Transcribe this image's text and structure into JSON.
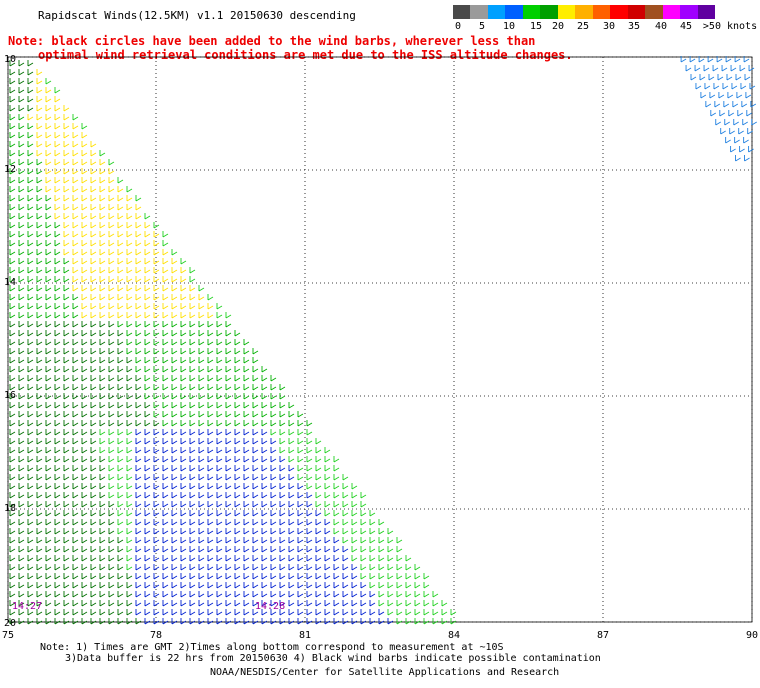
{
  "title": "Rapidscat Winds(12.5KM) v1.1 20150630 descending",
  "note_line1": "Note: black circles have been added to the wind barbs, wherever less than",
  "note_line2": "optimal wind retrieval conditions are met due to the ISS altitude changes.",
  "legend": {
    "labels": [
      "0",
      "5",
      "10",
      "15",
      "20",
      "25",
      "30",
      "35",
      "40",
      "45",
      ">50 knots"
    ],
    "colors": [
      "#4a4a4a",
      "#9a9a9a",
      "#00a0ff",
      "#0060ff",
      "#00d000",
      "#00a000",
      "#ffee00",
      "#ffb000",
      "#ff6000",
      "#ff0000",
      "#d00000",
      "#a05020",
      "#ff00ff",
      "#a000ff",
      "#6000a0"
    ]
  },
  "map": {
    "lat_labels": [
      "10",
      "12",
      "14",
      "16",
      "18",
      "20"
    ],
    "lon_labels": [
      "75",
      "78",
      "81",
      "84",
      "87",
      "90"
    ],
    "time_labels": [
      "14:27",
      "14:28"
    ]
  },
  "footer": {
    "line1": "Note: 1) Times are GMT 2)Times along bottom correspond to measurement at ~10S",
    "line2": "3)Data buffer is 22 hrs from 20150630 4) Black wind barbs indicate possible contamination",
    "line3": "NOAA/NESDIS/Center for Satellite Applications and Research"
  }
}
